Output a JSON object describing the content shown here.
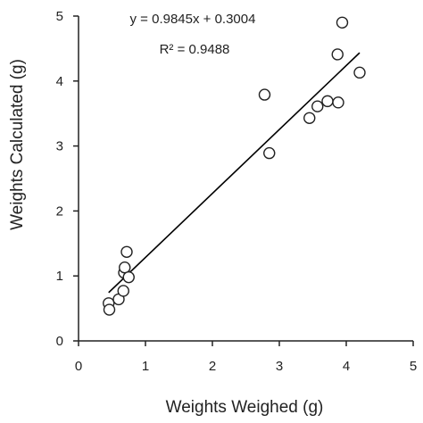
{
  "chart_data": {
    "type": "scatter",
    "xlabel": "Weights Weighed (g)",
    "ylabel": "Weights Calculated (g)",
    "xlim": [
      0,
      5
    ],
    "ylim": [
      0,
      5
    ],
    "xticks": [
      0,
      1,
      2,
      3,
      4,
      5
    ],
    "yticks": [
      0,
      1,
      2,
      3,
      4,
      5
    ],
    "grid": false,
    "legend": "none",
    "marker": "hollow-circle",
    "annotations": {
      "equation": "y = 0.9845x + 0.3004",
      "r_squared": "R² = 0.9488"
    },
    "trendline": {
      "slope": 0.9845,
      "intercept": 0.3004,
      "x_range": [
        0.45,
        4.2
      ]
    },
    "points": [
      {
        "x": 0.45,
        "y": 0.58
      },
      {
        "x": 0.46,
        "y": 0.48
      },
      {
        "x": 0.6,
        "y": 0.64
      },
      {
        "x": 0.67,
        "y": 0.77
      },
      {
        "x": 0.68,
        "y": 1.05
      },
      {
        "x": 0.69,
        "y": 1.13
      },
      {
        "x": 0.72,
        "y": 1.37
      },
      {
        "x": 0.75,
        "y": 0.98
      },
      {
        "x": 2.78,
        "y": 3.79
      },
      {
        "x": 2.85,
        "y": 2.89
      },
      {
        "x": 3.45,
        "y": 3.43
      },
      {
        "x": 3.57,
        "y": 3.61
      },
      {
        "x": 3.72,
        "y": 3.69
      },
      {
        "x": 3.88,
        "y": 3.67
      },
      {
        "x": 3.87,
        "y": 4.41
      },
      {
        "x": 3.94,
        "y": 4.9
      },
      {
        "x": 4.2,
        "y": 4.13
      }
    ],
    "colors": {
      "axis": "#222222",
      "marker_stroke": "#222222",
      "marker_fill": "#ffffff",
      "trendline": "#000000"
    }
  }
}
